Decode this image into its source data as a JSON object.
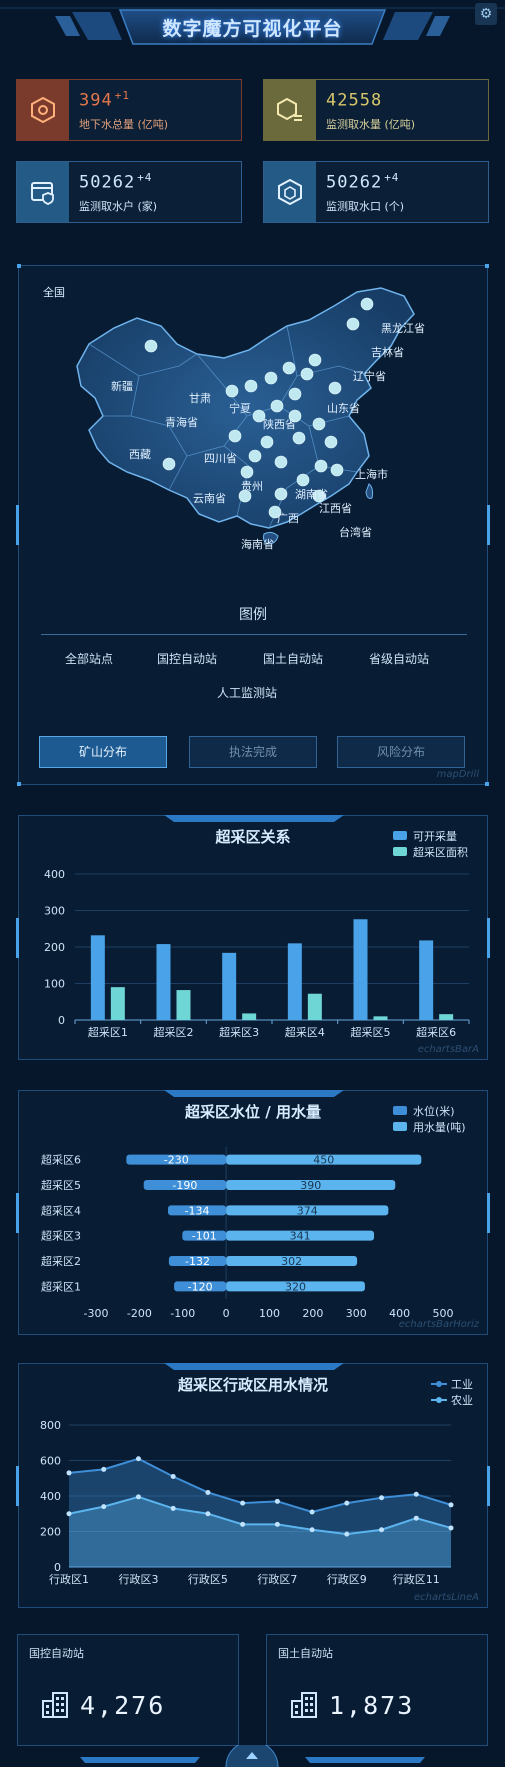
{
  "header": {
    "title": "数字魔方可视化平台",
    "gear_icon": "gear-icon"
  },
  "stats": [
    {
      "value": "394",
      "delta": "+1",
      "label": "地下水总量 (亿吨)",
      "icon": "hexagon-nodes-icon",
      "color": "#e3764c",
      "bg": "#7a3a2c"
    },
    {
      "value": "42558",
      "delta": "",
      "label": "监测取水量 (亿吨)",
      "icon": "cube-list-icon",
      "color": "#d7c66a",
      "bg": "#6a6a3c"
    },
    {
      "value": "50262",
      "delta": "+4",
      "label": "监测取水户 (家)",
      "icon": "browser-shield-icon",
      "color": "#cfe6ff",
      "bg": "#245a86"
    },
    {
      "value": "50262",
      "delta": "+4",
      "label": "监测取水口 (个)",
      "icon": "hexagon-outline-icon",
      "color": "#cfe6ff",
      "bg": "#245a86"
    }
  ],
  "map": {
    "region": "全国",
    "province_labels": [
      "新疆",
      "西藏",
      "青海省",
      "甘肃",
      "四川省",
      "云南省",
      "贵州",
      "海南省",
      "台湾省",
      "辽宁省",
      "吉林省",
      "黑龙江省",
      "山东省",
      "宁夏",
      "陕西省",
      "湖南省",
      "广西",
      "江西省",
      "上海市"
    ],
    "legend_title": "图例",
    "legend_items": [
      "全部站点",
      "国控自动站",
      "国土自动站",
      "省级自动站",
      "人工监测站"
    ],
    "buttons": [
      {
        "label": "矿山分布",
        "active": true
      },
      {
        "label": "执法完成",
        "active": false
      },
      {
        "label": "风险分布",
        "active": false
      }
    ],
    "watermark": "mapDrill"
  },
  "chart1": {
    "title": "超采区关系",
    "watermark": "echartsBarA",
    "chart_data": {
      "type": "bar",
      "categories": [
        "超采区1",
        "超采区2",
        "超采区3",
        "超采区4",
        "超采区5",
        "超采区6"
      ],
      "series": [
        {
          "name": "可开采量",
          "values": [
            232,
            208,
            184,
            210,
            276,
            218
          ],
          "color": "#4aa3e8"
        },
        {
          "name": "超采区面积",
          "values": [
            90,
            82,
            18,
            72,
            10,
            16
          ],
          "color": "#6fd6d6"
        }
      ],
      "ylim": [
        0,
        400
      ],
      "yticks": [
        0,
        100,
        200,
        300,
        400
      ]
    }
  },
  "chart2": {
    "title": "超采区水位 / 用水量",
    "watermark": "echartsBarHoriz",
    "chart_data": {
      "type": "bar",
      "orientation": "horizontal",
      "categories": [
        "超采区1",
        "超采区2",
        "超采区3",
        "超采区4",
        "超采区5",
        "超采区6"
      ],
      "series": [
        {
          "name": "水位(米)",
          "values": [
            -120,
            -132,
            -101,
            -134,
            -190,
            -230
          ],
          "color": "#3e8fd8"
        },
        {
          "name": "用水量(吨)",
          "values": [
            320,
            302,
            341,
            374,
            390,
            450
          ],
          "color": "#5cb4ee"
        }
      ],
      "xlim": [
        -300,
        500
      ],
      "xticks": [
        -300,
        -200,
        -100,
        0,
        100,
        200,
        300,
        400,
        500
      ]
    }
  },
  "chart3": {
    "title": "超采区行政区用水情况",
    "watermark": "echartsLineA",
    "chart_data": {
      "type": "area",
      "x": [
        "行政区1",
        "行政区2",
        "行政区3",
        "行政区4",
        "行政区5",
        "行政区6",
        "行政区7",
        "行政区8",
        "行政区9",
        "行政区10",
        "行政区11",
        "行政区12"
      ],
      "xtick_labels": [
        "行政区1",
        "行政区3",
        "行政区5",
        "行政区7",
        "行政区9",
        "行政区11"
      ],
      "series": [
        {
          "name": "工业",
          "values": [
            530,
            550,
            610,
            510,
            420,
            360,
            370,
            310,
            360,
            390,
            410,
            350
          ],
          "color": "#3e8fd8"
        },
        {
          "name": "农业",
          "values": [
            300,
            340,
            395,
            330,
            300,
            240,
            240,
            210,
            185,
            210,
            275,
            220
          ],
          "color": "#5cb4ee"
        }
      ],
      "ylim": [
        0,
        800
      ],
      "yticks": [
        0,
        200,
        400,
        600,
        800
      ]
    }
  },
  "bottom": [
    {
      "title": "国控自动站",
      "value": "4,276",
      "icon": "building-icon"
    },
    {
      "title": "国土自动站",
      "value": "1,873",
      "icon": "building-icon"
    }
  ]
}
